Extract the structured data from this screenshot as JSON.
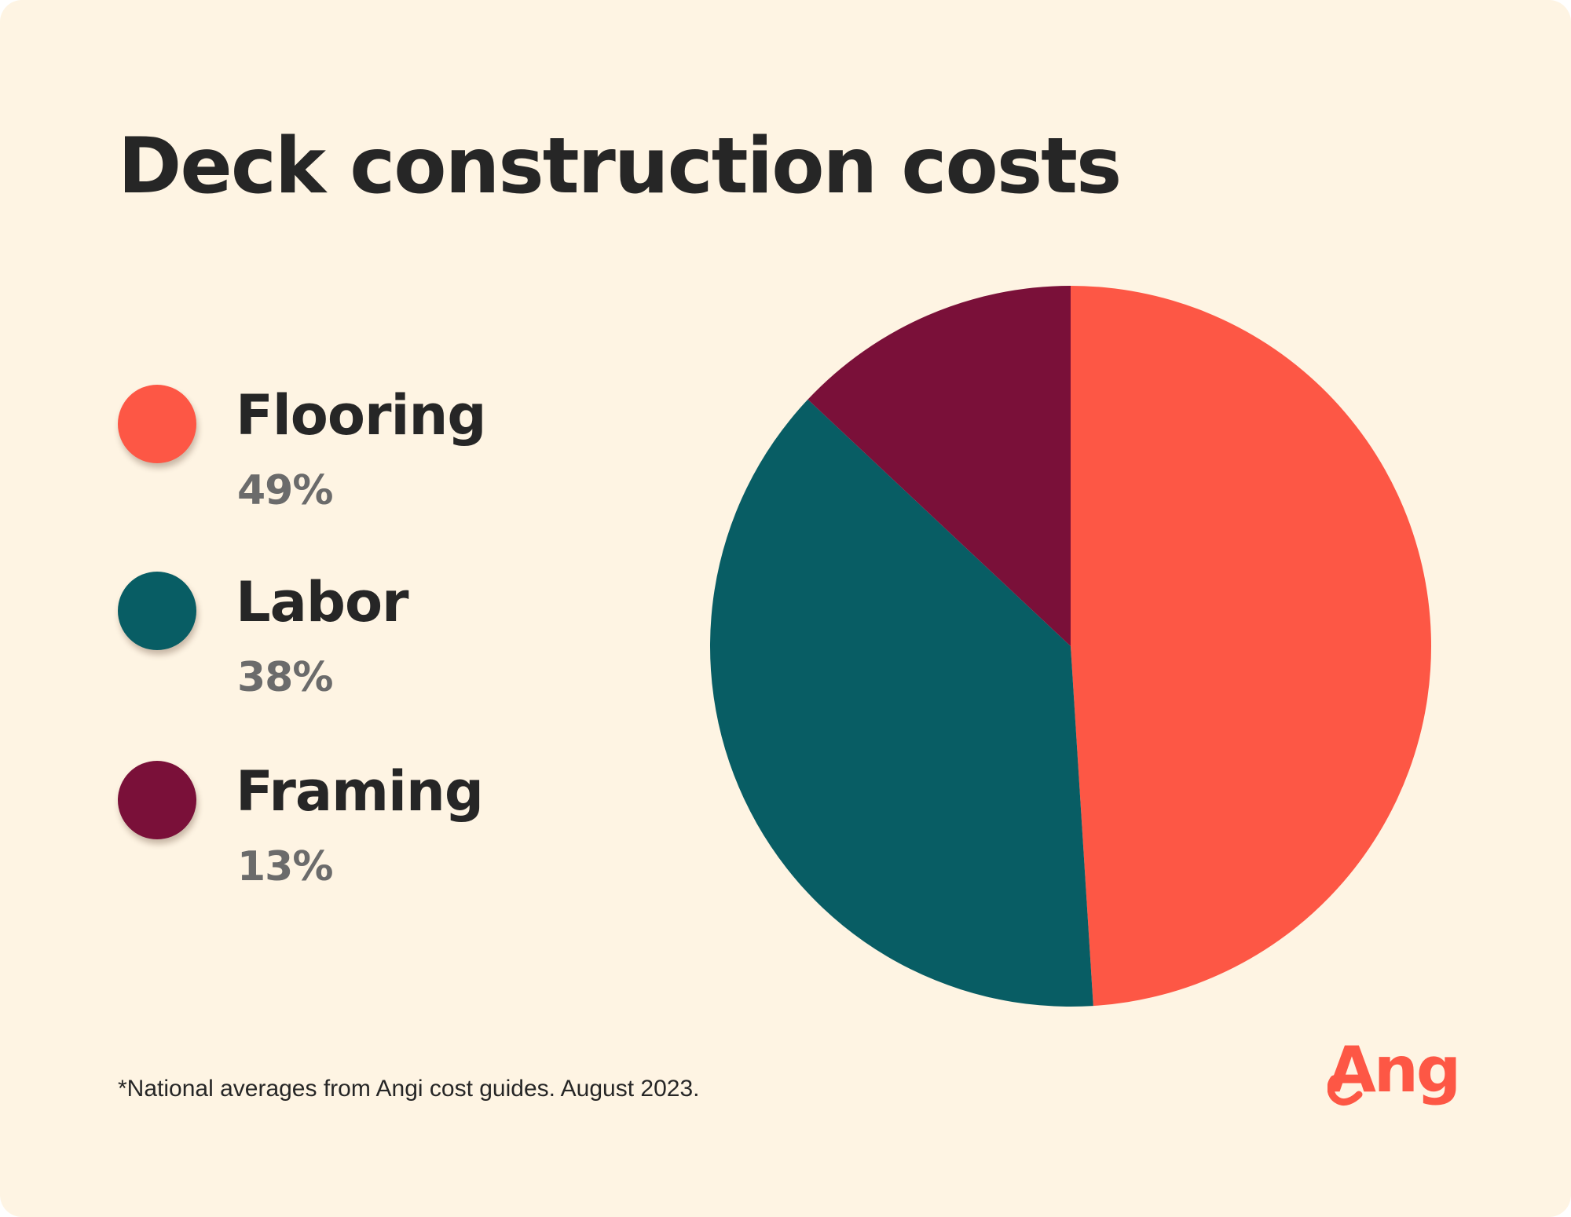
{
  "chart_data": {
    "type": "pie",
    "title": "Deck construction costs",
    "legend_position": "left",
    "slices": [
      {
        "name": "Flooring",
        "value": 49,
        "label": "49%",
        "color": "#fd5745"
      },
      {
        "name": "Labor",
        "value": 38,
        "label": "38%",
        "color": "#085d64"
      },
      {
        "name": "Framing",
        "value": 13,
        "label": "13%",
        "color": "#7a1039"
      }
    ],
    "footnote": "*National averages from Angi cost guides. August 2023."
  },
  "brand": {
    "logo_text": "Angi",
    "logo_color": "#fd5745"
  },
  "colors": {
    "background": "#fef4e3",
    "text": "#262626",
    "value_text": "#6b6b6b"
  }
}
